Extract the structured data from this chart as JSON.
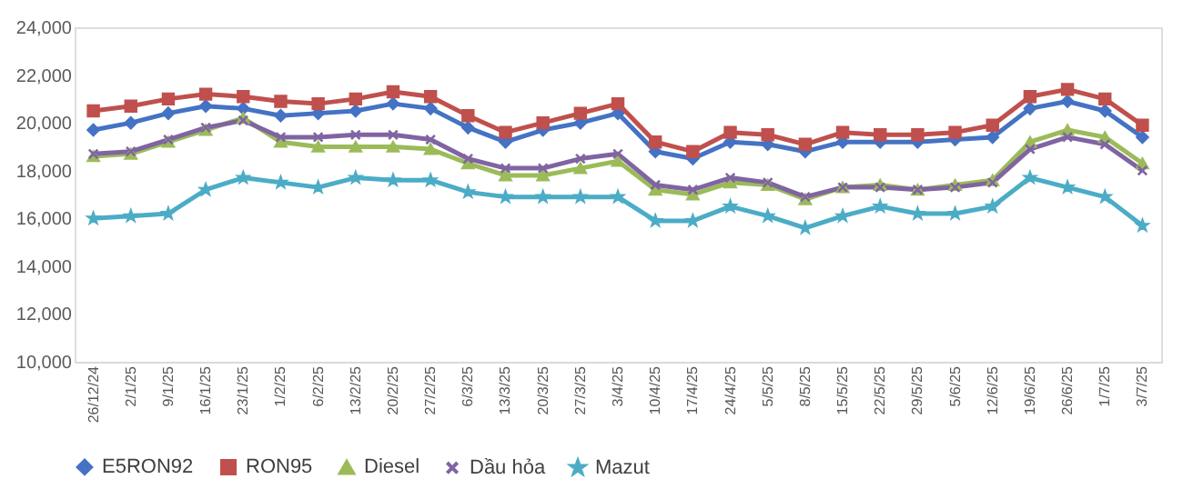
{
  "chart_data": {
    "type": "line",
    "categories": [
      "26/12/24",
      "2/1/25",
      "9/1/25",
      "16/1/25",
      "23/1/25",
      "1/2/25",
      "6/2/25",
      "13/2/25",
      "20/2/25",
      "27/2/25",
      "6/3/25",
      "13/3/25",
      "20/3/25",
      "27/3/25",
      "3/4/25",
      "10/4/25",
      "17/4/25",
      "24/4/25",
      "5/5/25",
      "8/5/25",
      "15/5/25",
      "22/5/25",
      "29/5/25",
      "5/6/25",
      "12/6/25",
      "19/6/25",
      "26/6/25",
      "1/7/25",
      "3/7/25"
    ],
    "series": [
      {
        "name": "E5RON92",
        "color": "#4472c4",
        "marker": "diamond",
        "values": [
          19700,
          20000,
          20400,
          20700,
          20600,
          20300,
          20400,
          20500,
          20800,
          20600,
          19800,
          19200,
          19700,
          20000,
          20400,
          18800,
          18500,
          19200,
          19100,
          18800,
          19200,
          19200,
          19200,
          19300,
          19400,
          20600,
          20900,
          20500,
          19400
        ]
      },
      {
        "name": "RON95",
        "color": "#c0504d",
        "marker": "square",
        "values": [
          20500,
          20700,
          21000,
          21200,
          21100,
          20900,
          20800,
          21000,
          21300,
          21100,
          20300,
          19600,
          20000,
          20400,
          20800,
          19200,
          18800,
          19600,
          19500,
          19100,
          19600,
          19500,
          19500,
          19600,
          19900,
          21100,
          21400,
          21000,
          19900
        ]
      },
      {
        "name": "Diesel",
        "color": "#9bbb59",
        "marker": "triangle",
        "values": [
          18600,
          18700,
          19200,
          19700,
          20200,
          19200,
          19000,
          19000,
          19000,
          18900,
          18300,
          17800,
          17800,
          18100,
          18400,
          17200,
          17000,
          17500,
          17400,
          16800,
          17300,
          17400,
          17200,
          17400,
          17600,
          19200,
          19700,
          19400,
          18300
        ]
      },
      {
        "name": "Dầu hỏa",
        "color": "#8064a2",
        "marker": "cross",
        "values": [
          18700,
          18800,
          19300,
          19800,
          20100,
          19400,
          19400,
          19500,
          19500,
          19300,
          18500,
          18100,
          18100,
          18500,
          18700,
          17400,
          17200,
          17700,
          17500,
          16900,
          17300,
          17300,
          17200,
          17300,
          17500,
          18900,
          19400,
          19100,
          18000
        ]
      },
      {
        "name": "Mazut",
        "color": "#4bacc6",
        "marker": "star",
        "values": [
          16000,
          16100,
          16200,
          17200,
          17700,
          17500,
          17300,
          17700,
          17600,
          17600,
          17100,
          16900,
          16900,
          16900,
          16900,
          15900,
          15900,
          16500,
          16100,
          15600,
          16100,
          16500,
          16200,
          16200,
          16500,
          17700,
          17300,
          16900,
          15700
        ]
      }
    ],
    "ylim": [
      10000,
      24000
    ],
    "yticks": [
      {
        "value": 10000,
        "label": "10,000"
      },
      {
        "value": 12000,
        "label": "12,000"
      },
      {
        "value": 14000,
        "label": "14,000"
      },
      {
        "value": 16000,
        "label": "16,000"
      },
      {
        "value": 18000,
        "label": "18,000"
      },
      {
        "value": 20000,
        "label": "20,000"
      },
      {
        "value": 22000,
        "label": "22,000"
      },
      {
        "value": 24000,
        "label": "24,000"
      }
    ],
    "grid": false,
    "legend": "bottom",
    "line_style": "solid"
  }
}
